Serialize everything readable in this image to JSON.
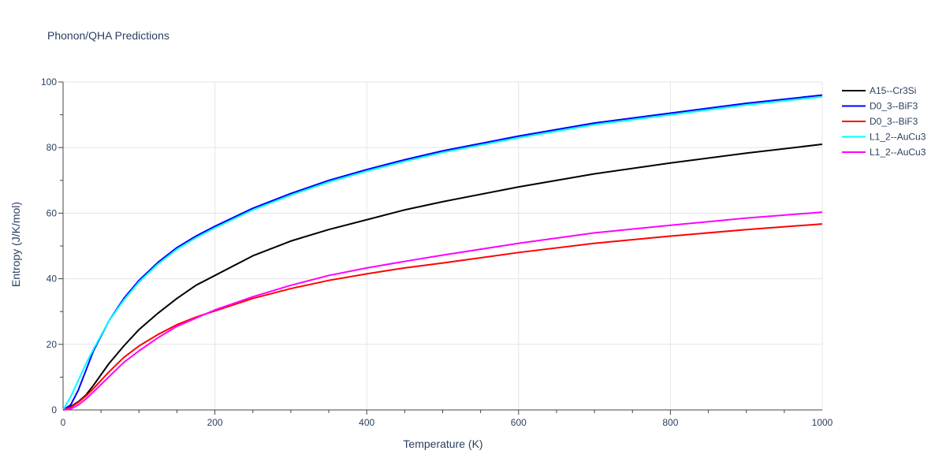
{
  "chart_data": {
    "type": "line",
    "title": "Phonon/QHA Predictions",
    "xlabel": "Temperature (K)",
    "ylabel": "Entropy (J/K/mol)",
    "xlim": [
      0,
      1000
    ],
    "ylim": [
      0,
      100
    ],
    "x_ticks": [
      0,
      200,
      400,
      600,
      800,
      1000
    ],
    "y_ticks": [
      0,
      20,
      40,
      60,
      80,
      100
    ],
    "grid": true,
    "legend_position": "top-right",
    "series": [
      {
        "name": "A15--Cr3Si",
        "color": "#000000",
        "x": [
          0,
          10,
          20,
          30,
          40,
          60,
          80,
          100,
          125,
          150,
          175,
          200,
          250,
          300,
          350,
          400,
          450,
          500,
          600,
          700,
          800,
          900,
          1000
        ],
        "y": [
          0,
          1,
          2.5,
          4.5,
          7.5,
          14,
          19.5,
          24.5,
          29.5,
          34,
          38,
          41,
          47,
          51.5,
          55,
          58,
          61,
          63.5,
          68,
          72,
          75.3,
          78.3,
          81
        ]
      },
      {
        "name": "D0_3--BiF3",
        "color": "#0000ff",
        "x": [
          0,
          10,
          20,
          30,
          40,
          60,
          80,
          100,
          125,
          150,
          175,
          200,
          250,
          300,
          350,
          400,
          450,
          500,
          600,
          700,
          800,
          900,
          1000
        ],
        "y": [
          0,
          1.5,
          6,
          12,
          18,
          27,
          34,
          39.5,
          45,
          49.5,
          53,
          56,
          61.5,
          66,
          70,
          73.3,
          76.3,
          79,
          83.5,
          87.5,
          90.5,
          93.5,
          96
        ]
      },
      {
        "name": "D0_3--BiF3",
        "color": "#ff0000",
        "x": [
          0,
          10,
          20,
          30,
          40,
          60,
          80,
          100,
          125,
          150,
          175,
          200,
          250,
          300,
          350,
          400,
          450,
          500,
          600,
          700,
          800,
          900,
          1000
        ],
        "y": [
          0,
          0.8,
          2.3,
          4.2,
          6.5,
          11.5,
          16,
          19.5,
          23,
          26,
          28.3,
          30.2,
          34,
          37,
          39.5,
          41.5,
          43.3,
          44.8,
          48,
          50.8,
          53,
          55,
          56.7
        ]
      },
      {
        "name": "L1_2--AuCu3",
        "color": "#00ffff",
        "x": [
          0,
          10,
          20,
          30,
          40,
          60,
          80,
          100,
          125,
          150,
          175,
          200,
          250,
          300,
          350,
          400,
          450,
          500,
          600,
          700,
          800,
          900,
          1000
        ],
        "y": [
          0,
          4,
          9,
          14,
          18.5,
          27,
          33.5,
          39,
          44.5,
          49,
          52.5,
          55.5,
          61,
          65.5,
          69.5,
          72.8,
          75.8,
          78.5,
          83,
          87,
          90,
          93,
          95.5
        ]
      },
      {
        "name": "L1_2--AuCu3",
        "color": "#ff00ff",
        "x": [
          0,
          10,
          20,
          30,
          40,
          60,
          80,
          100,
          125,
          150,
          175,
          200,
          250,
          300,
          350,
          400,
          450,
          500,
          600,
          700,
          800,
          900,
          1000
        ],
        "y": [
          0,
          0.3,
          1.5,
          3.3,
          5.5,
          10,
          14.5,
          18,
          22,
          25.5,
          28,
          30.5,
          34.5,
          38,
          41,
          43.3,
          45.3,
          47.2,
          50.8,
          54,
          56.3,
          58.5,
          60.3
        ]
      }
    ]
  }
}
